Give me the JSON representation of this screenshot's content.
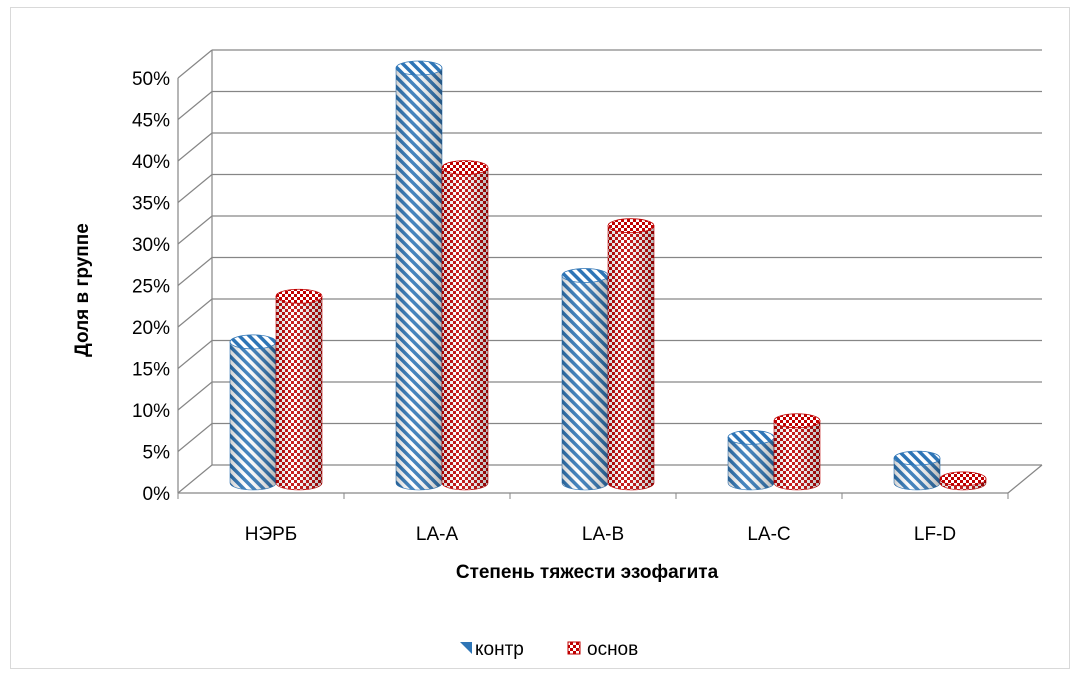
{
  "chart_data": {
    "type": "bar",
    "style": "3d-cylinder",
    "categories": [
      "НЭРБ",
      "LA-A",
      "LA-B",
      "LA-C",
      "LF-D"
    ],
    "series": [
      {
        "name": "контр",
        "values": [
          17,
          50,
          25,
          5.5,
          3
        ],
        "color": "#2e75b6",
        "pattern": "diagonal-stripes"
      },
      {
        "name": "основ",
        "values": [
          22.5,
          38,
          31,
          7.5,
          0.5
        ],
        "color": "#c00000",
        "pattern": "checkerboard"
      }
    ],
    "xlabel": "Степень тяжести эзофагита",
    "ylabel": "Доля в группе",
    "ylim": [
      0,
      50
    ],
    "yticks": [
      "0%",
      "5%",
      "10%",
      "15%",
      "20%",
      "25%",
      "30%",
      "35%",
      "40%",
      "45%",
      "50%"
    ],
    "grid": true,
    "legend_position": "bottom"
  }
}
